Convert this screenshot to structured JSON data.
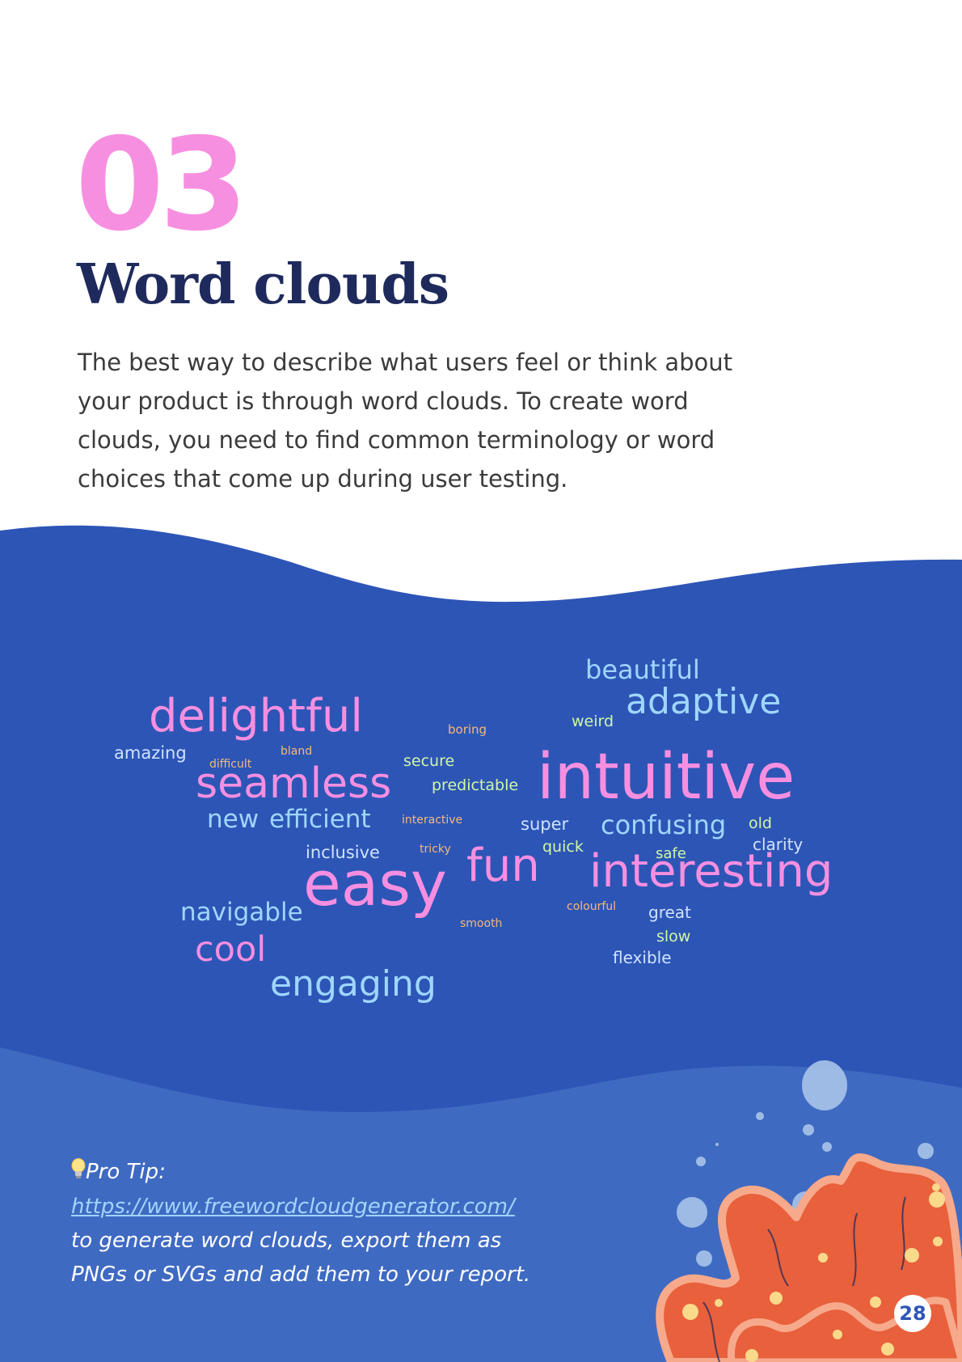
{
  "section_number": "03",
  "title": "Word clouds",
  "intro": "The best way to describe what users feel or think about your product is through word clouds. To create word clouds, you need to find common terminology or word choices that come up during user testing.",
  "colors": {
    "pink": "#f78fe0",
    "light_blue": "#9fd6ff",
    "pale_blue": "#cfe3ff",
    "green": "#cff7a6",
    "orange": "#f6b77a",
    "navy": "#1f2a5c",
    "band_dark": "#2d55b6",
    "band_light": "#3f6ac2",
    "coral": "#e8603c"
  },
  "word_cloud": {
    "words": [
      {
        "text": "beautiful",
        "color": "light_blue"
      },
      {
        "text": "adaptive",
        "color": "light_blue"
      },
      {
        "text": "delightful",
        "color": "pink"
      },
      {
        "text": "weird",
        "color": "green"
      },
      {
        "text": "boring",
        "color": "orange"
      },
      {
        "text": "amazing",
        "color": "pale_blue"
      },
      {
        "text": "bland",
        "color": "orange"
      },
      {
        "text": "difficult",
        "color": "orange"
      },
      {
        "text": "secure",
        "color": "green"
      },
      {
        "text": "intuitive",
        "color": "pink"
      },
      {
        "text": "seamless",
        "color": "pink"
      },
      {
        "text": "predictable",
        "color": "green"
      },
      {
        "text": "new",
        "color": "light_blue"
      },
      {
        "text": "efficient",
        "color": "light_blue"
      },
      {
        "text": "interactive",
        "color": "orange"
      },
      {
        "text": "super",
        "color": "pale_blue"
      },
      {
        "text": "confusing",
        "color": "light_blue"
      },
      {
        "text": "old",
        "color": "green"
      },
      {
        "text": "clarity",
        "color": "pale_blue"
      },
      {
        "text": "inclusive",
        "color": "pale_blue"
      },
      {
        "text": "tricky",
        "color": "orange"
      },
      {
        "text": "quick",
        "color": "green"
      },
      {
        "text": "safe",
        "color": "green"
      },
      {
        "text": "fun",
        "color": "pink"
      },
      {
        "text": "interesting",
        "color": "pink"
      },
      {
        "text": "easy",
        "color": "pink"
      },
      {
        "text": "navigable",
        "color": "light_blue"
      },
      {
        "text": "colourful",
        "color": "orange"
      },
      {
        "text": "great",
        "color": "pale_blue"
      },
      {
        "text": "smooth",
        "color": "orange"
      },
      {
        "text": "slow",
        "color": "green"
      },
      {
        "text": "cool",
        "color": "pink"
      },
      {
        "text": "flexible",
        "color": "pale_blue"
      },
      {
        "text": "engaging",
        "color": "light_blue"
      }
    ]
  },
  "pro_tip": {
    "icon": "lightbulb-icon",
    "label": "Pro Tip:",
    "link": "https://www.freewordcloudgenerator.com/",
    "body": "to generate word clouds, export them as PNGs or SVGs and add them to your report."
  },
  "page_number": "28",
  "decorations": [
    "coral-illustration",
    "bubbles"
  ]
}
